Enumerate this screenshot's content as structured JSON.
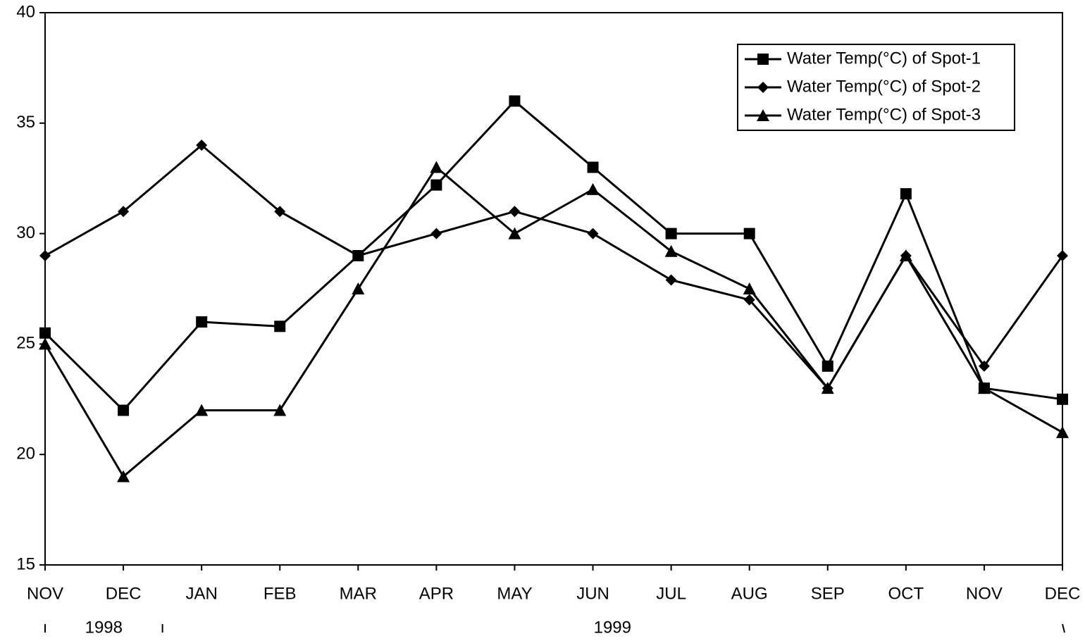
{
  "chart_data": {
    "type": "line",
    "categories": [
      "NOV",
      "DEC",
      "JAN",
      "FEB",
      "MAR",
      "APR",
      "MAY",
      "JUN",
      "JUL",
      "AUG",
      "SEP",
      "OCT",
      "NOV",
      "DEC"
    ],
    "groups": [
      {
        "label": "1998",
        "start": 0,
        "end": 1
      },
      {
        "label": "1999",
        "start": 2,
        "end": 13
      }
    ],
    "series": [
      {
        "name": "Water Temp(°C) of Spot-1",
        "color": "#000000",
        "marker": "square",
        "values": [
          25.5,
          22,
          26,
          25.8,
          29,
          32.2,
          36,
          33,
          30,
          30,
          24,
          31.8,
          23,
          22.5
        ]
      },
      {
        "name": "Water Temp(°C) of Spot-2",
        "color": "#000000",
        "marker": "diamond",
        "values": [
          29,
          31,
          34,
          31,
          29,
          30,
          31,
          30,
          27.9,
          27,
          23,
          29,
          24,
          29
        ]
      },
      {
        "name": "Water Temp(°C) of Spot-3",
        "color": "#000000",
        "marker": "triangle",
        "values": [
          25,
          19,
          22,
          22,
          27.5,
          33,
          30,
          32,
          29.2,
          27.5,
          23,
          29,
          23,
          21
        ]
      }
    ],
    "ylim": [
      15,
      40
    ],
    "yticks": [
      15,
      20,
      25,
      30,
      35,
      40
    ],
    "grid": false,
    "legend": "upper right"
  }
}
